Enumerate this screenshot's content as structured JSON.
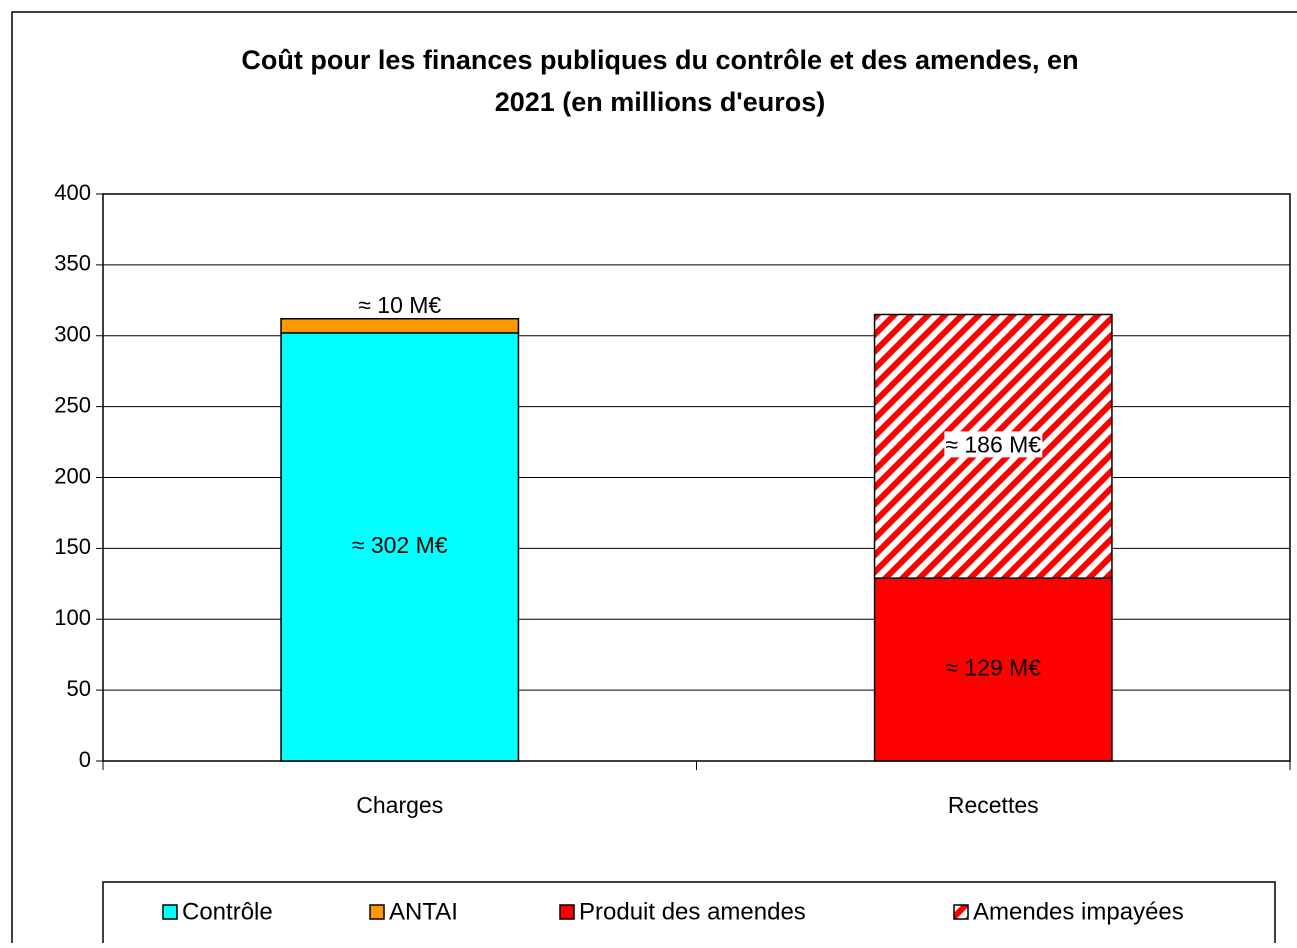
{
  "chart_data": {
    "type": "stacked_bar",
    "title": [
      "Coût pour les finances publiques du contrôle et des amendes, en",
      "2021 (en millions d'euros)"
    ],
    "categories": [
      "Charges",
      "Recettes"
    ],
    "series": [
      {
        "name": "Contrôle",
        "color": "#00ffff",
        "label_color": "#000000",
        "values": [
          302,
          null
        ],
        "value_labels": [
          "≈ 302 M€",
          null
        ]
      },
      {
        "name": "ANTAI",
        "color": "#ff9900",
        "label_color": "#000000",
        "values": [
          10,
          null
        ],
        "value_labels": [
          "≈ 10 M€",
          null
        ]
      },
      {
        "name": "Produit des amendes",
        "color": "#ff0000",
        "label_color": "#ffffff",
        "values": [
          null,
          129
        ],
        "value_labels": [
          null,
          "≈ 129 M€"
        ]
      },
      {
        "name": "Amendes impayées",
        "color": "#ff0000",
        "pattern": "hatch",
        "label_color": "#000000",
        "values": [
          null,
          186
        ],
        "value_labels": [
          null,
          "≈ 186 M€"
        ]
      }
    ],
    "ylim": [
      0,
      400
    ],
    "yticks": [
      0,
      50,
      100,
      150,
      200,
      250,
      300,
      350,
      400
    ],
    "grid": true,
    "legend": "bottom"
  }
}
